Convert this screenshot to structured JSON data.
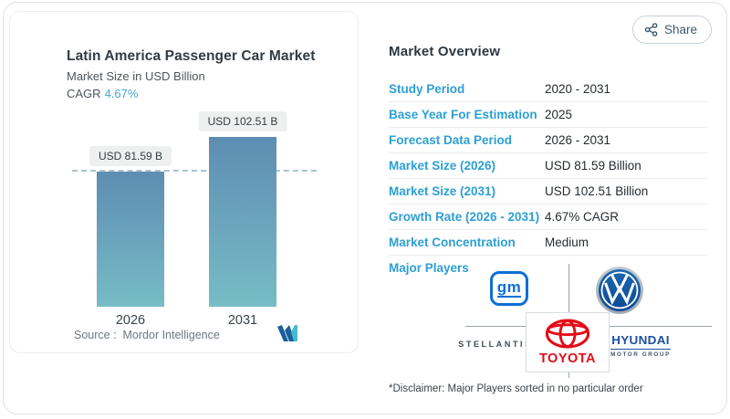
{
  "header": {
    "share_label": "Share"
  },
  "chart": {
    "title": "Latin America Passenger Car Market",
    "subtitle": "Market Size in USD Billion",
    "cagr_label": "CAGR",
    "cagr_value": "4.67%",
    "source_label": "Source :",
    "source_name": "Mordor Intelligence"
  },
  "chart_data": {
    "type": "bar",
    "title": "Latin America Passenger Car Market",
    "ylabel": "Market Size in USD Billion",
    "categories": [
      "2026",
      "2031"
    ],
    "values": [
      81.59,
      102.51
    ],
    "value_labels": [
      "USD 81.59 B",
      "USD 102.51 B"
    ],
    "unit": "USD Billion",
    "cagr_percent": 4.67,
    "reference_line_value": 81.59,
    "grid": false,
    "legend": "none",
    "bar_colors": {
      "top": "#5e8db2",
      "bottom": "#77bcc6"
    }
  },
  "overview": {
    "heading": "Market Overview",
    "rows": [
      {
        "label": "Study Period",
        "value": "2020 - 2031"
      },
      {
        "label": "Base Year For Estimation",
        "value": "2025"
      },
      {
        "label": "Forecast Data Period",
        "value": "2026 - 2031"
      },
      {
        "label": "Market Size (2026)",
        "value": "USD 81.59 Billion"
      },
      {
        "label": "Market Size (2031)",
        "value": "USD 102.51 Billion"
      },
      {
        "label": "Growth Rate (2026 - 2031)",
        "value": "4.67% CAGR"
      },
      {
        "label": "Market Concentration",
        "value": "Medium"
      }
    ],
    "major_players_label": "Major Players",
    "major_players": [
      "GM",
      "Volkswagen",
      "Stellantis",
      "Toyota",
      "Hyundai Motor Group"
    ],
    "players": {
      "gm": "gm",
      "stellantis": "STELLANTIS",
      "toyota": "TOYOTA",
      "hyundai": "HYUNDAI",
      "hyundai_sub": "MOTOR GROUP"
    },
    "disclaimer": "*Disclaimer: Major Players sorted in no particular order"
  },
  "icons": {
    "share": "share-nodes-icon",
    "mordor_logo": "mordor-intelligence-mark",
    "gm_logo": "gm-logo",
    "vw_logo": "volkswagen-logo",
    "toyota_emblem": "toyota-emblem"
  },
  "colors": {
    "accent_blue": "#2d9fd3",
    "cagr_blue": "#4ba3d4",
    "bar_top": "#5e8db2",
    "bar_bottom": "#77bcc6",
    "toyota_red": "#e30b17",
    "gm_blue": "#0c6fd6",
    "vw_blue": "#0f5ba8",
    "hyundai_blue": "#1b4fa1",
    "share_text": "#3d5a6e",
    "divider": "#e9eced"
  }
}
